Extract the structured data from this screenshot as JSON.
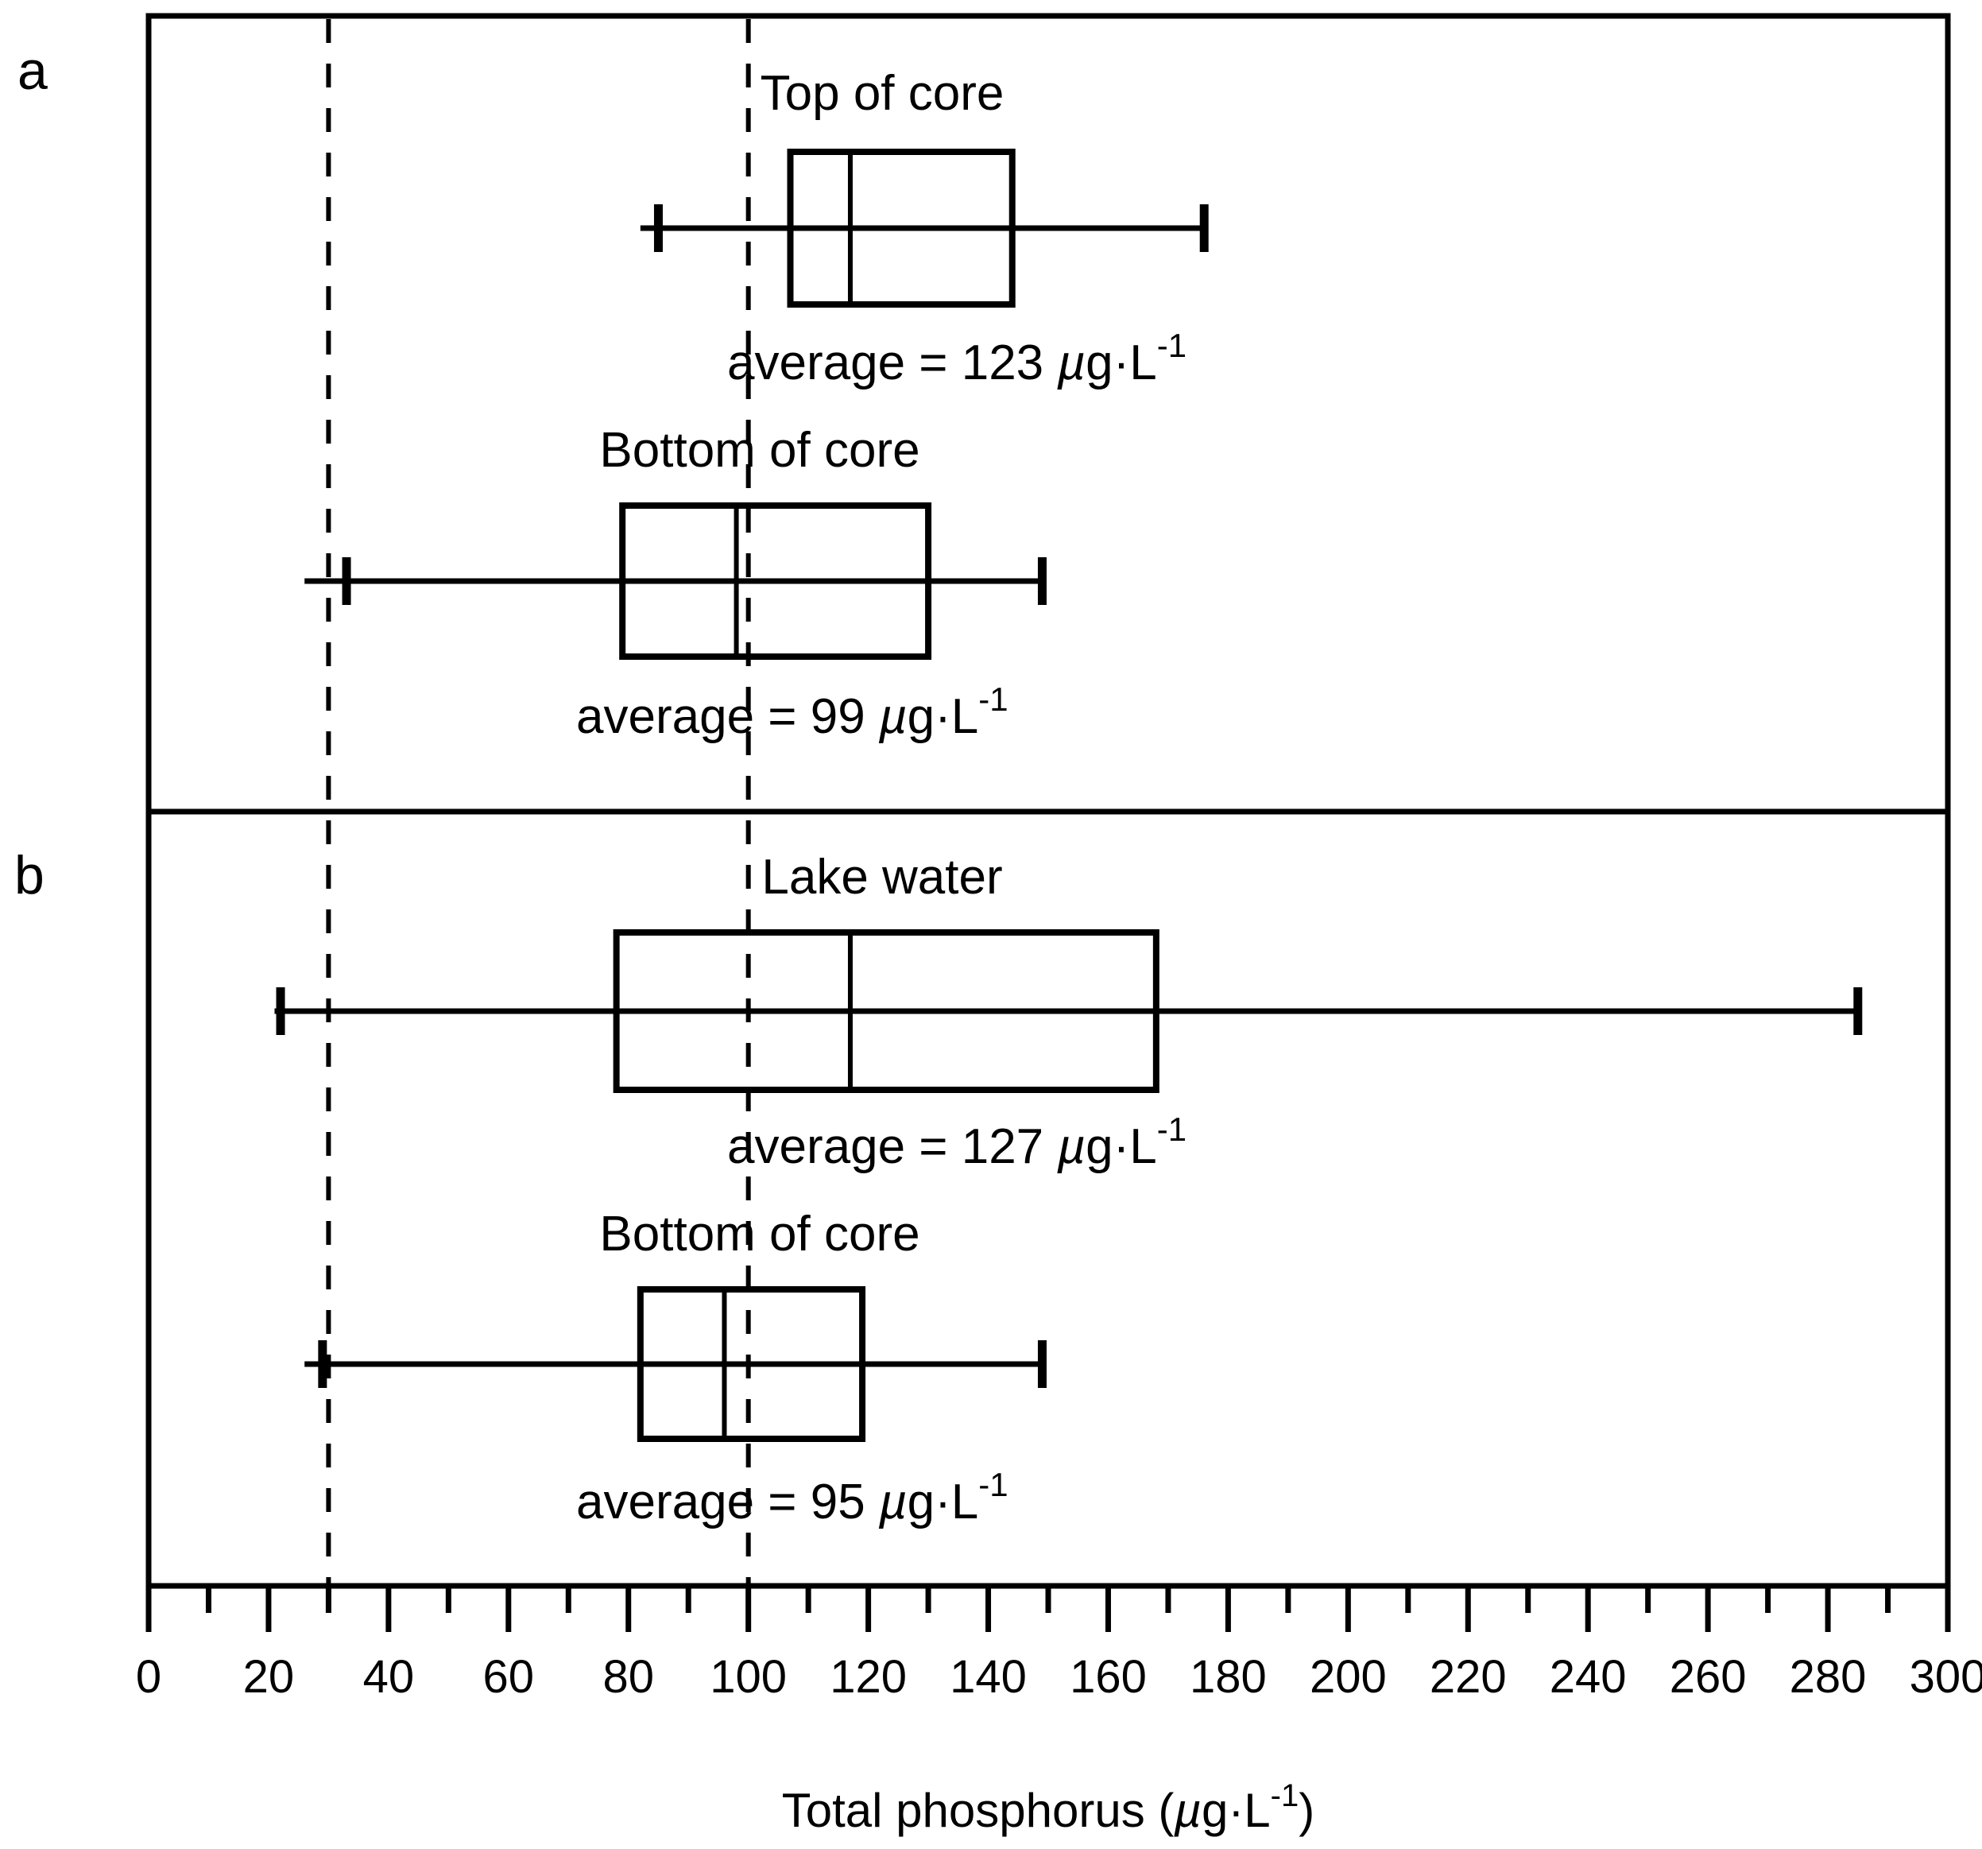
{
  "chart_data": {
    "type": "boxplot",
    "orientation": "horizontal",
    "xlabel": "Total phosphorus (µg·L-1)",
    "xlabel_parts": {
      "prefix": "Total phosphorus (",
      "mu": "µ",
      "mid": "g·L",
      "sup": "-1",
      "suffix": ")"
    },
    "xlim": [
      0,
      300
    ],
    "xticks": [
      0,
      20,
      40,
      60,
      80,
      100,
      120,
      140,
      160,
      180,
      200,
      220,
      240,
      260,
      280,
      300
    ],
    "xtick_labels": [
      "0",
      "20",
      "40",
      "60",
      "80",
      "100",
      "120",
      "140",
      "160",
      "180",
      "200",
      "220",
      "240",
      "260",
      "280",
      "300"
    ],
    "minor_tick_step": 10,
    "reference_lines": [
      30,
      100
    ],
    "panels": [
      {
        "id": "a",
        "letter": "a",
        "boxes": [
          {
            "name": "Top of core",
            "whisker_low": 85,
            "q1": 107,
            "median": 117,
            "q3": 144,
            "whisker_high": 176,
            "line_start": 82,
            "average_text": "average = 123 ",
            "unit_mu": "µ",
            "unit_rest": "g·L",
            "unit_sup": "-1"
          },
          {
            "name": "Bottom of core",
            "whisker_low": 33,
            "q1": 79,
            "median": 98,
            "q3": 130,
            "whisker_high": 149,
            "line_start": 26,
            "average_text": "average = 99 ",
            "unit_mu": "µ",
            "unit_rest": "g·L",
            "unit_sup": "-1"
          }
        ]
      },
      {
        "id": "b",
        "letter": "b",
        "boxes": [
          {
            "name": "Lake water",
            "whisker_low": 22,
            "q1": 78,
            "median": 117,
            "q3": 168,
            "whisker_high": 285,
            "line_start": 21,
            "average_text": "average = 127 ",
            "unit_mu": "µ",
            "unit_rest": "g·L",
            "unit_sup": "-1"
          },
          {
            "name": "Bottom of core",
            "whisker_low": 29,
            "q1": 82,
            "median": 96,
            "q3": 119,
            "whisker_high": 149,
            "line_start": 26,
            "average_text": "average = 95 ",
            "unit_mu": "µ",
            "unit_rest": "g·L",
            "unit_sup": "-1"
          }
        ]
      }
    ]
  }
}
